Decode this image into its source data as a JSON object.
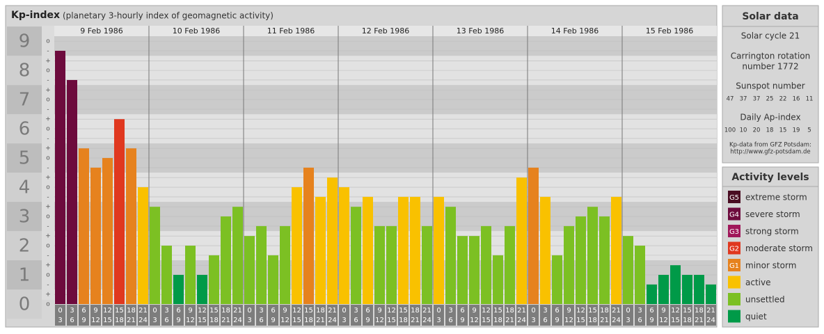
{
  "chart_data": {
    "type": "bar",
    "title": "Kp-index",
    "subtitle": "(planetary 3-hourly index of geomagnetic activity)",
    "ylim": [
      0,
      9.17
    ],
    "yticks": [
      0,
      1,
      2,
      3,
      4,
      5,
      6,
      7,
      8,
      9
    ],
    "minor_ticks": [
      {
        "value": 0,
        "label": "o"
      },
      {
        "value": 0.33,
        "label": "+"
      },
      {
        "value": 0.67,
        "label": "-"
      },
      {
        "value": 1,
        "label": "o"
      },
      {
        "value": 1.33,
        "label": "+"
      },
      {
        "value": 1.67,
        "label": "-"
      },
      {
        "value": 2,
        "label": "o"
      },
      {
        "value": 2.33,
        "label": "+"
      },
      {
        "value": 2.67,
        "label": "-"
      },
      {
        "value": 3,
        "label": "o"
      },
      {
        "value": 3.33,
        "label": "+"
      },
      {
        "value": 3.67,
        "label": "-"
      },
      {
        "value": 4,
        "label": "o"
      },
      {
        "value": 4.33,
        "label": "+"
      },
      {
        "value": 4.67,
        "label": "-"
      },
      {
        "value": 5,
        "label": "o"
      },
      {
        "value": 5.33,
        "label": "+"
      },
      {
        "value": 5.67,
        "label": "-"
      },
      {
        "value": 6,
        "label": "o"
      },
      {
        "value": 6.33,
        "label": "+"
      },
      {
        "value": 6.67,
        "label": "-"
      },
      {
        "value": 7,
        "label": "o"
      },
      {
        "value": 7.33,
        "label": "+"
      },
      {
        "value": 7.67,
        "label": "-"
      },
      {
        "value": 8,
        "label": "o"
      },
      {
        "value": 8.33,
        "label": "+"
      },
      {
        "value": 8.67,
        "label": "-"
      },
      {
        "value": 9,
        "label": "o"
      }
    ],
    "grid": true,
    "intervals": [
      [
        "0",
        "3"
      ],
      [
        "3",
        "6"
      ],
      [
        "6",
        "9"
      ],
      [
        "9",
        "12"
      ],
      [
        "12",
        "15"
      ],
      [
        "15",
        "18"
      ],
      [
        "18",
        "21"
      ],
      [
        "21",
        "24"
      ]
    ],
    "days": [
      {
        "date": "9 Feb 1986",
        "values": [
          8.67,
          7.67,
          5.33,
          4.67,
          5,
          6.33,
          5.33,
          4
        ],
        "colors": [
          "#6d0b3d",
          "#6d0b3d",
          "#e6821e",
          "#e6821e",
          "#e6821e",
          "#e0381f",
          "#e6821e",
          "#f9c100"
        ]
      },
      {
        "date": "10 Feb 1986",
        "values": [
          3.33,
          2,
          1,
          2,
          1,
          1.67,
          3,
          3.33
        ],
        "colors": [
          "#7cc023",
          "#7cc023",
          "#009a48",
          "#7cc023",
          "#009a48",
          "#7cc023",
          "#7cc023",
          "#7cc023"
        ]
      },
      {
        "date": "11 Feb 1986",
        "values": [
          2.33,
          2.67,
          1.67,
          2.67,
          4,
          4.67,
          3.67,
          4.33
        ],
        "colors": [
          "#7cc023",
          "#7cc023",
          "#7cc023",
          "#7cc023",
          "#f9c100",
          "#e6821e",
          "#f9c100",
          "#f9c100"
        ]
      },
      {
        "date": "12 Feb 1986",
        "values": [
          4,
          3.33,
          3.67,
          2.67,
          2.67,
          3.67,
          3.67,
          2.67
        ],
        "colors": [
          "#f9c100",
          "#7cc023",
          "#f9c100",
          "#7cc023",
          "#7cc023",
          "#f9c100",
          "#f9c100",
          "#7cc023"
        ]
      },
      {
        "date": "13 Feb 1986",
        "values": [
          3.67,
          3.33,
          2.33,
          2.33,
          2.67,
          1.67,
          2.67,
          4.33
        ],
        "colors": [
          "#f9c100",
          "#7cc023",
          "#7cc023",
          "#7cc023",
          "#7cc023",
          "#7cc023",
          "#7cc023",
          "#f9c100"
        ]
      },
      {
        "date": "14 Feb 1986",
        "values": [
          4.67,
          3.67,
          1.67,
          2.67,
          3,
          3.33,
          3,
          3.67
        ],
        "colors": [
          "#e6821e",
          "#f9c100",
          "#7cc023",
          "#7cc023",
          "#7cc023",
          "#7cc023",
          "#7cc023",
          "#f9c100"
        ]
      },
      {
        "date": "15 Feb 1986",
        "values": [
          2.33,
          2,
          0.67,
          1,
          1.33,
          1,
          1,
          0.67
        ],
        "colors": [
          "#7cc023",
          "#7cc023",
          "#009a48",
          "#009a48",
          "#009a48",
          "#009a48",
          "#009a48",
          "#009a48"
        ]
      }
    ]
  },
  "solar_data": {
    "title": "Solar data",
    "cycle": "Solar cycle 21",
    "carrington": [
      "Carrington rotation",
      "number 1772"
    ],
    "sunspot_label": "Sunspot number",
    "sunspot_values": [
      47,
      37,
      37,
      25,
      22,
      16,
      11
    ],
    "ap_label": "Daily Ap-index",
    "ap_values": [
      100,
      10,
      20,
      18,
      15,
      19,
      5
    ],
    "source": [
      "Kp-data from GFZ Potsdam:",
      "http://www.gfz-potsdam.de"
    ]
  },
  "activity_levels": {
    "title": "Activity levels",
    "items": [
      {
        "badge": "G5",
        "label": "extreme storm",
        "color": "#4a0d22"
      },
      {
        "badge": "G4",
        "label": "severe storm",
        "color": "#6d0b3d"
      },
      {
        "badge": "G3",
        "label": "strong storm",
        "color": "#a0175a"
      },
      {
        "badge": "G2",
        "label": "moderate storm",
        "color": "#e0381f"
      },
      {
        "badge": "G1",
        "label": "minor storm",
        "color": "#e6821e"
      },
      {
        "label": "active",
        "color": "#f9c100"
      },
      {
        "label": "unsettled",
        "color": "#7cc023"
      },
      {
        "label": "quiet",
        "color": "#009a48"
      }
    ]
  }
}
